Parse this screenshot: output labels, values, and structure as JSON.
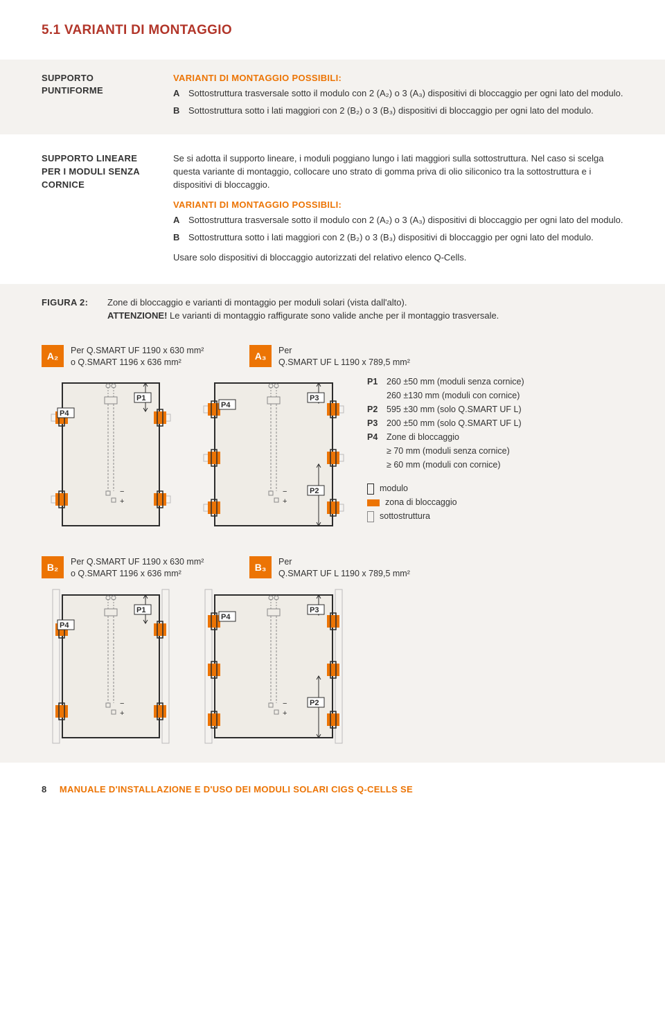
{
  "colors": {
    "heading": "#b2362a",
    "orange": "#ec7404",
    "text": "#333333",
    "shade": "#f4f2ef",
    "panel_bg": "#efece6",
    "panel_border": "#2c2c2c"
  },
  "heading": "5.1 VARIANTI DI MONTAGGIO",
  "block1": {
    "left1": "SUPPORTO",
    "left2": "PUNTIFORME",
    "title": "VARIANTI DI MONTAGGIO POSSIBILI:",
    "a_label": "A",
    "a_text": "Sottostruttura trasversale sotto il modulo con 2 (A₂) o 3 (A₃) dispositivi di bloccaggio per ogni lato del modulo.",
    "b_label": "B",
    "b_text": "Sottostruttura sotto i lati maggiori con 2 (B₂) o 3 (B₃) dispositivi di bloccaggio per ogni lato del modulo."
  },
  "block2": {
    "left1": "SUPPORTO LINEARE",
    "left2": "PER I MODULI SENZA",
    "left3": "CORNICE",
    "intro": "Se si adotta il supporto lineare, i moduli poggiano lungo i lati maggiori sulla sottostruttura. Nel caso si scelga questa variante di montaggio, collocare uno strato di gomma priva di olio siliconico tra la sottostruttura e i dispositivi di bloccaggio.",
    "title": "VARIANTI DI MONTAGGIO POSSIBILI:",
    "a_label": "A",
    "a_text": "Sottostruttura trasversale sotto il modulo con 2 (A₂) o 3 (A₃) dispositivi di bloccaggio per ogni lato del modulo.",
    "b_label": "B",
    "b_text": "Sottostruttura sotto i lati maggiori con 2 (B₂) o 3 (B₃) dispositivi di bloccaggio per ogni lato del modulo.",
    "outro": "Usare solo dispositivi di bloccaggio autorizzati del relativo elenco Q-Cells."
  },
  "fig": {
    "label": "FIGURA 2:",
    "text1": "Zone di bloccaggio e varianti di montaggio per moduli solari (vista dall'alto).",
    "text2a": "ATTENZIONE!",
    "text2b": " Le varianti di montaggio raffigurate sono valide anche per il montaggio trasversale."
  },
  "a2": {
    "badge": "A₂",
    "t1": "Per Q.SMART UF 1190 x 630 mm²",
    "t2": "o Q.SMART 1196 x 636 mm²"
  },
  "a3": {
    "badge": "A₃",
    "t1": "Per",
    "t2": "Q.SMART UF L 1190 x 789,5 mm²"
  },
  "b2": {
    "badge": "B₂",
    "t1": "Per Q.SMART UF 1190 x 630 mm²",
    "t2": "o Q.SMART 1196 x 636 mm²"
  },
  "b3": {
    "badge": "B₃",
    "t1": "Per",
    "t2": "Q.SMART UF L 1190 x 789,5 mm²"
  },
  "legend": {
    "p1": {
      "k": "P1",
      "v1": "260 ±50 mm (moduli senza cornice)",
      "v2": "260 ±130 mm (moduli con cornice)"
    },
    "p2": {
      "k": "P2",
      "v": "595 ±30 mm (solo Q.SMART UF L)"
    },
    "p3": {
      "k": "P3",
      "v": "200 ±50 mm (solo Q.SMART UF L)"
    },
    "p4": {
      "k": "P4",
      "v1": "Zone di bloccaggio",
      "v2": "≥ 70 mm (moduli senza cornice)",
      "v3": "≥ 60 mm (moduli con cornice)"
    },
    "sym1": "modulo",
    "sym2": "zona di bloccaggio",
    "sym3": "sottostruttura"
  },
  "dlabels": {
    "p1": "P1",
    "p2": "P2",
    "p3": "P3",
    "p4": "P4",
    "plus": "+",
    "minus": "−"
  },
  "footer": {
    "page": "8",
    "text": "MANUALE D'INSTALLAZIONE E D'USO DEI MODULI SOLARI CIGS Q-CELLS SE"
  }
}
